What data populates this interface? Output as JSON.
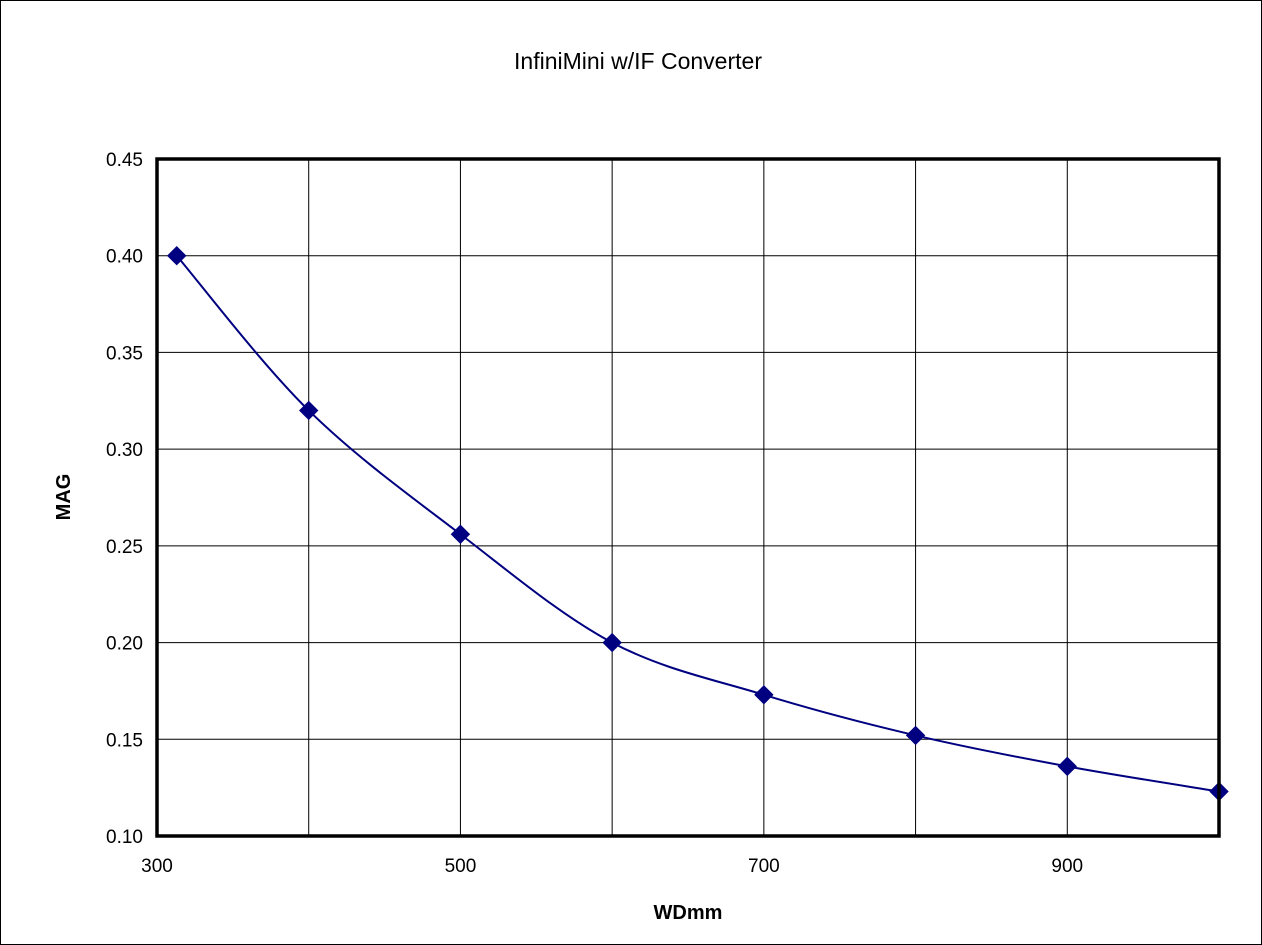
{
  "chart_data": {
    "type": "line",
    "title": "InfiniMini w/IF Converter",
    "xlabel": "WDmm",
    "ylabel": "MAG",
    "xlim": [
      300,
      1000
    ],
    "ylim": [
      0.1,
      0.45
    ],
    "x_ticks": [
      300,
      500,
      700,
      900
    ],
    "x_tick_labels": [
      "300",
      "500",
      "700",
      "900"
    ],
    "x_gridlines": [
      400,
      500,
      600,
      700,
      800,
      900
    ],
    "y_ticks": [
      0.1,
      0.15,
      0.2,
      0.25,
      0.3,
      0.35,
      0.4,
      0.45
    ],
    "y_tick_labels": [
      "0.10",
      "0.15",
      "0.20",
      "0.25",
      "0.30",
      "0.35",
      "0.40",
      "0.45"
    ],
    "grid": true,
    "legend": "none",
    "marker": "diamond",
    "series": [
      {
        "color": "#000080",
        "x": [
          313,
          400,
          500,
          600,
          700,
          800,
          900,
          1000
        ],
        "y": [
          0.4,
          0.32,
          0.256,
          0.2,
          0.173,
          0.152,
          0.136,
          0.123
        ]
      }
    ]
  }
}
